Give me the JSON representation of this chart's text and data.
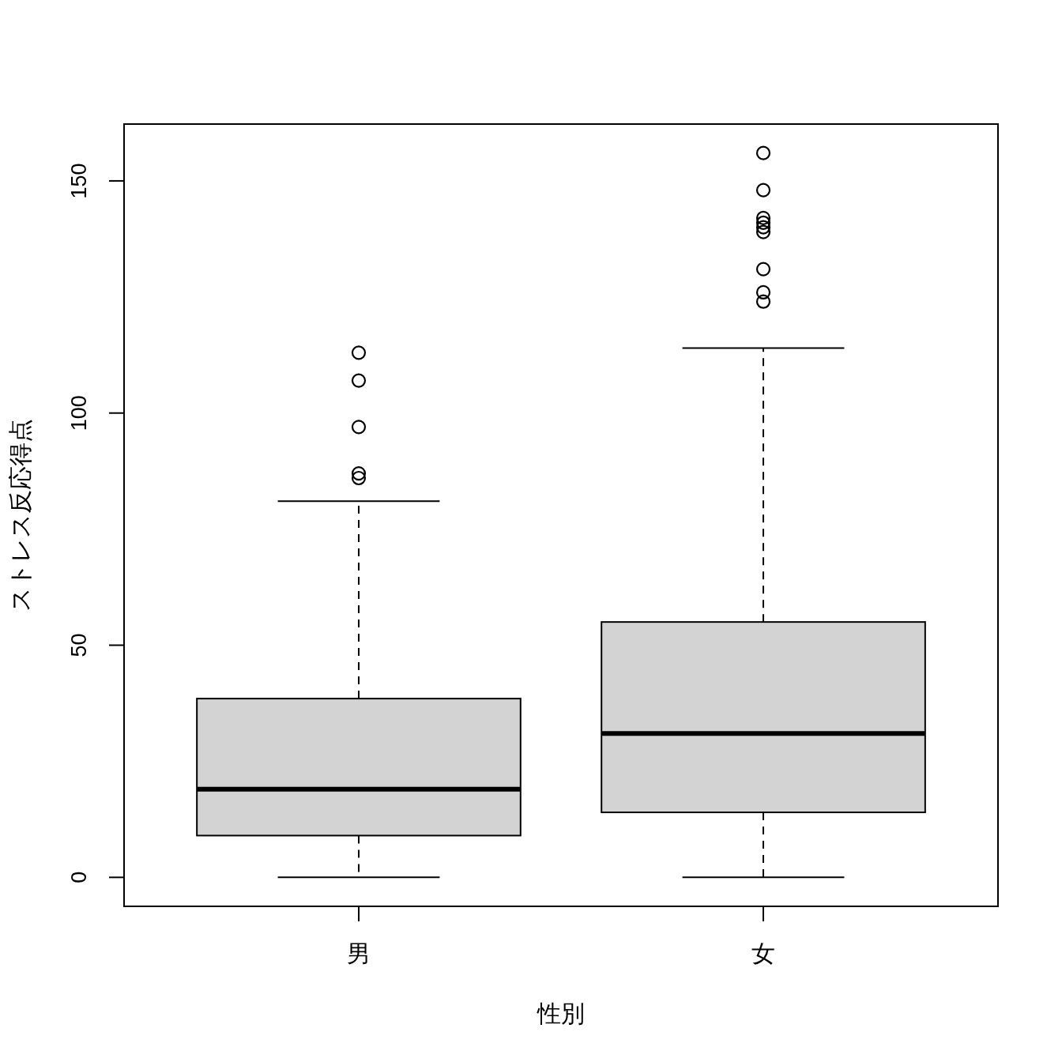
{
  "chart_data": {
    "type": "box",
    "xlabel": "性別",
    "ylabel": "ストレス反応得点",
    "categories": [
      "男",
      "女"
    ],
    "boxes": [
      {
        "low": 0,
        "q1": 9,
        "median": 19,
        "q3": 38.5,
        "high": 81,
        "outliers": [
          86,
          87,
          97,
          107,
          113
        ]
      },
      {
        "low": 0,
        "q1": 14,
        "median": 31,
        "q3": 55,
        "high": 114,
        "outliers": [
          124,
          126,
          131,
          139,
          140,
          141,
          142,
          148,
          156
        ]
      }
    ],
    "color": "#d3d3d3",
    "marker": "circle",
    "ylim": [
      -6.24,
      162.24
    ],
    "yticks": [
      0,
      50,
      100,
      150
    ]
  }
}
